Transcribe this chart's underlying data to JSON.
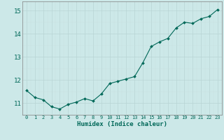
{
  "x": [
    0,
    1,
    2,
    3,
    4,
    5,
    6,
    7,
    8,
    9,
    10,
    11,
    12,
    13,
    14,
    15,
    16,
    17,
    18,
    19,
    20,
    21,
    22,
    23
  ],
  "y": [
    11.55,
    11.25,
    11.15,
    10.85,
    10.75,
    10.95,
    11.05,
    11.2,
    11.1,
    11.4,
    11.85,
    11.95,
    12.05,
    12.15,
    12.75,
    13.45,
    13.65,
    13.8,
    14.25,
    14.5,
    14.45,
    14.65,
    14.75,
    15.05
  ],
  "xlabel": "Humidex (Indice chaleur)",
  "line_color": "#006858",
  "marker_color": "#006858",
  "bg_color": "#cce8e8",
  "grid_major_color": "#b8d4d4",
  "grid_minor_color": "#c8e0e0",
  "ylim": [
    10.5,
    15.4
  ],
  "xlim": [
    -0.5,
    23.5
  ],
  "yticks": [
    11,
    12,
    13,
    14,
    15
  ],
  "xtick_fontsize": 5.0,
  "ytick_fontsize": 6.5,
  "xlabel_fontsize": 6.5
}
